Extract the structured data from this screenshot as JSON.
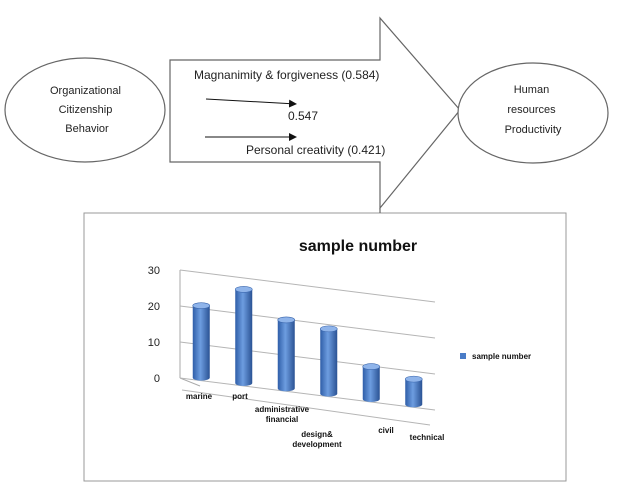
{
  "diagram": {
    "left_node": [
      "Organizational",
      "Citizenship",
      "Behavior"
    ],
    "right_node": [
      "Human",
      "resources",
      "Productivity"
    ],
    "arrow_labels": {
      "top": "Magnanimity & forgiveness (0.584)",
      "middle": "0.547",
      "bottom": "Personal creativity (0.421)"
    }
  },
  "chart_data": {
    "type": "bar",
    "title": "sample number",
    "categories": [
      "marine",
      "port",
      "administrative financial",
      "design& development",
      "civil",
      "technical"
    ],
    "category_label_lines": [
      [
        "marine"
      ],
      [
        "port"
      ],
      [
        "administrative",
        "financial"
      ],
      [
        "design&",
        "development"
      ],
      [
        "civil"
      ],
      [
        "technical"
      ]
    ],
    "series": [
      {
        "name": "sample number",
        "values": [
          20,
          26,
          19,
          18,
          9,
          7
        ]
      }
    ],
    "ylim": [
      0,
      30
    ],
    "yticks": [
      "0",
      "10",
      "20",
      "30"
    ],
    "legend": "right",
    "grid": true,
    "bar_color": "#4a7cc7"
  }
}
